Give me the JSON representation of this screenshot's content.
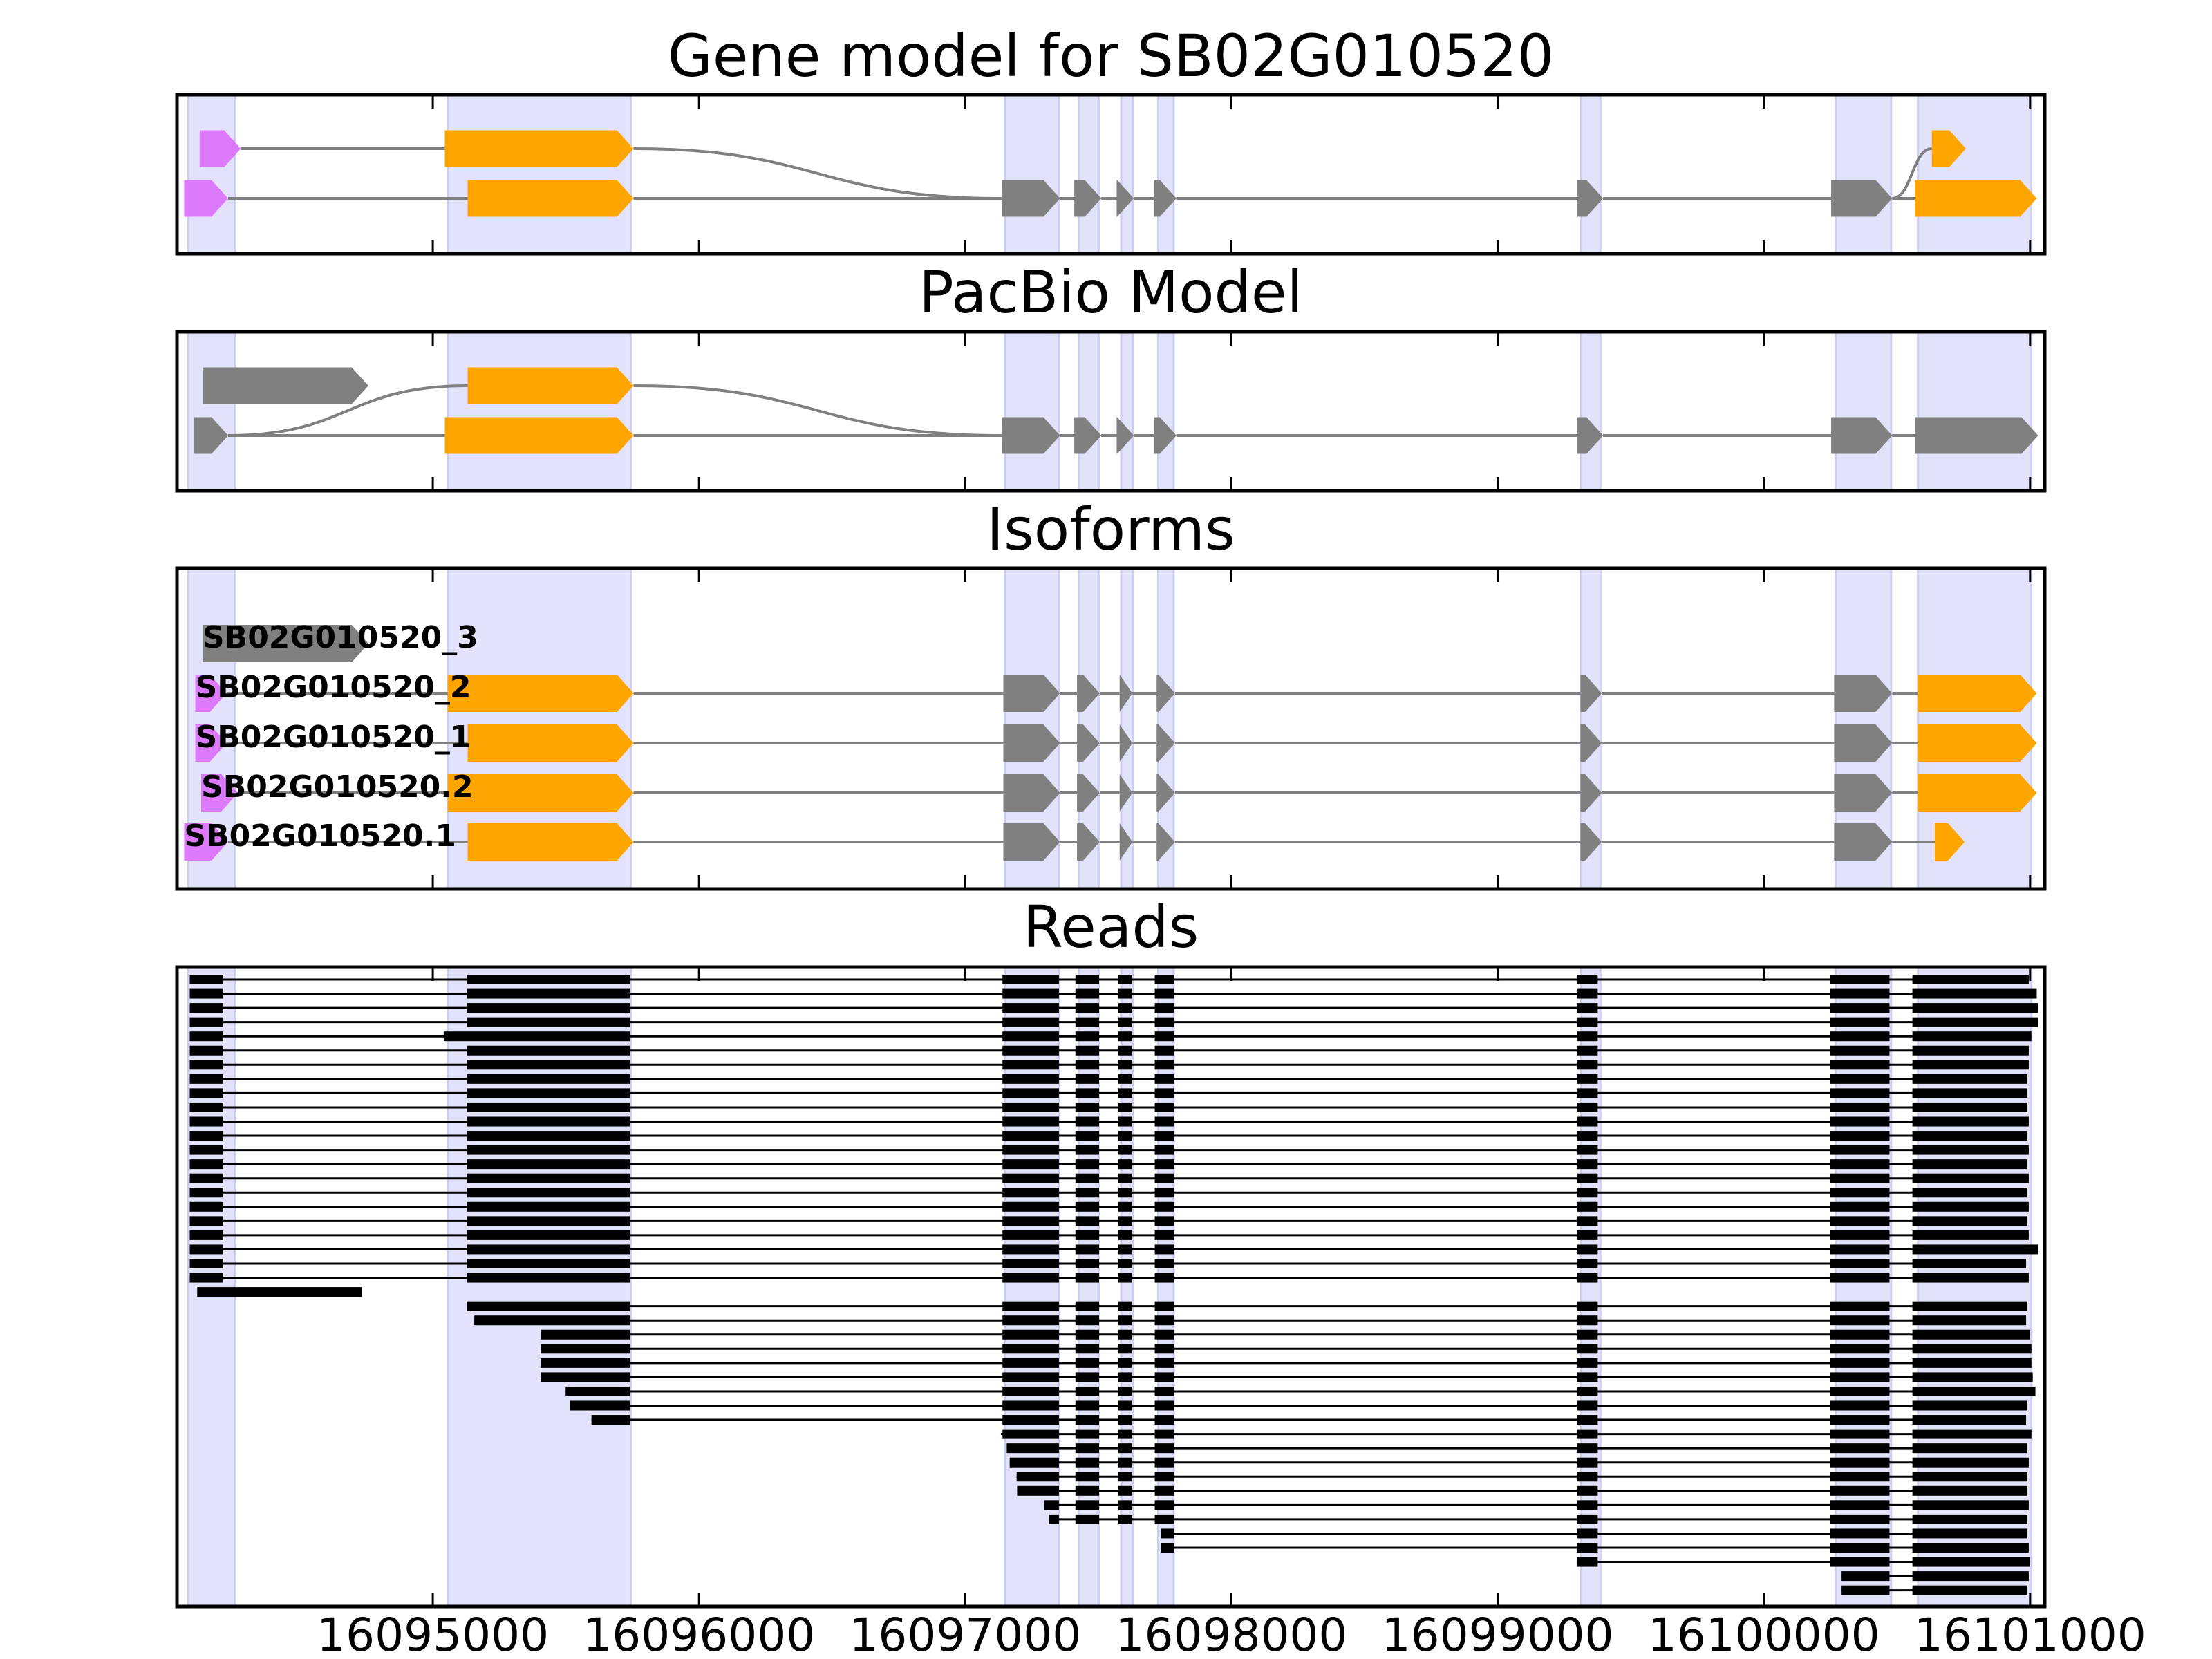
{
  "colors": {
    "pink": "#DD7AFC",
    "orange": "#FFA500",
    "gray": "#808080",
    "black": "#000000",
    "shade": "#E2E2FB",
    "shade_edge": "#CDCDF0"
  },
  "xaxis": {
    "xlim": [
      16094039,
      16101055
    ],
    "ticks": [
      16095000,
      16096000,
      16097000,
      16098000,
      16099000,
      16100000,
      16101000
    ],
    "tick_labels": [
      "16095000",
      "16096000",
      "16097000",
      "16098000",
      "16099000",
      "16100000",
      "16101000"
    ]
  },
  "shaded_regions": [
    [
      16094082,
      16094258
    ],
    [
      16095057,
      16095744
    ],
    [
      16097150,
      16097352
    ],
    [
      16097427,
      16097501
    ],
    [
      16097586,
      16097629
    ],
    [
      16097725,
      16097783
    ],
    [
      16099312,
      16099386
    ],
    [
      16100270,
      16100478
    ],
    [
      16100579,
      16101005
    ]
  ],
  "gene_model": {
    "title": "Gene model for SB02G010520",
    "transcripts": [
      {
        "exons": [
          [
            16094124,
            16094279,
            "pink",
            0
          ],
          [
            16095045,
            16095754,
            "orange",
            0
          ],
          [
            16097138,
            16097356,
            "gray",
            1
          ],
          [
            16097410,
            16097511,
            "gray",
            1
          ],
          [
            16097569,
            16097633,
            "gray",
            1
          ],
          [
            16097708,
            16097793,
            "gray",
            1
          ],
          [
            16099300,
            16099396,
            "gray",
            1
          ],
          [
            16100253,
            16100482,
            "gray",
            1
          ],
          [
            16100631,
            16100759,
            "orange",
            0
          ]
        ]
      },
      {
        "exons": [
          [
            16094066,
            16094231,
            "pink",
            1
          ],
          [
            16095131,
            16095754,
            "orange",
            1
          ],
          [
            16097138,
            16097356,
            "gray",
            1
          ],
          [
            16097410,
            16097511,
            "gray",
            1
          ],
          [
            16097569,
            16097633,
            "gray",
            1
          ],
          [
            16097708,
            16097793,
            "gray",
            1
          ],
          [
            16099300,
            16099396,
            "gray",
            1
          ],
          [
            16100253,
            16100482,
            "gray",
            1
          ],
          [
            16100567,
            16101025,
            "orange",
            1
          ]
        ]
      }
    ]
  },
  "pacbio_model": {
    "title": "PacBio Model",
    "transcripts": [
      {
        "exons": [
          [
            16094135,
            16094758,
            "gray",
            0
          ]
        ]
      },
      {
        "exons": [
          [
            16094103,
            16094231,
            "gray",
            1
          ],
          [
            16095131,
            16095754,
            "orange",
            0
          ],
          [
            16097138,
            16097356,
            "gray",
            1
          ],
          [
            16097410,
            16097511,
            "gray",
            1
          ],
          [
            16097569,
            16097633,
            "gray",
            1
          ],
          [
            16097708,
            16097793,
            "gray",
            1
          ],
          [
            16099300,
            16099396,
            "gray",
            1
          ],
          [
            16100253,
            16100482,
            "gray",
            1
          ],
          [
            16100567,
            16101030,
            "gray",
            1
          ]
        ]
      },
      {
        "exons": [
          [
            16094103,
            16094231,
            "gray",
            1
          ],
          [
            16095045,
            16095754,
            "orange",
            1
          ],
          [
            16097138,
            16097356,
            "gray",
            1
          ],
          [
            16097410,
            16097511,
            "gray",
            1
          ],
          [
            16097569,
            16097633,
            "gray",
            1
          ],
          [
            16097708,
            16097793,
            "gray",
            1
          ],
          [
            16099300,
            16099396,
            "gray",
            1
          ],
          [
            16100253,
            16100482,
            "gray",
            1
          ],
          [
            16100567,
            16101030,
            "gray",
            1
          ]
        ]
      }
    ]
  },
  "isoforms": {
    "title": "Isoforms",
    "transcripts": [
      {
        "label": "SB02G010520_3",
        "exons": [
          [
            16094135,
            16094758,
            "gray",
            0
          ]
        ]
      },
      {
        "label": "SB02G010520_2",
        "exons": [
          [
            16094108,
            16094225,
            "pink",
            1
          ],
          [
            16095056,
            16095754,
            "orange",
            1
          ],
          [
            16097143,
            16097356,
            "gray",
            1
          ],
          [
            16097420,
            16097505,
            "gray",
            1
          ],
          [
            16097580,
            16097628,
            "gray",
            1
          ],
          [
            16097719,
            16097788,
            "gray",
            1
          ],
          [
            16099311,
            16099391,
            "gray",
            1
          ],
          [
            16100264,
            16100482,
            "gray",
            1
          ],
          [
            16100578,
            16101025,
            "orange",
            1
          ]
        ]
      },
      {
        "label": "SB02G010520_1",
        "exons": [
          [
            16094108,
            16094225,
            "pink",
            2
          ],
          [
            16095131,
            16095754,
            "orange",
            2
          ],
          [
            16097143,
            16097356,
            "gray",
            2
          ],
          [
            16097420,
            16097505,
            "gray",
            2
          ],
          [
            16097580,
            16097628,
            "gray",
            2
          ],
          [
            16097719,
            16097788,
            "gray",
            2
          ],
          [
            16099311,
            16099391,
            "gray",
            2
          ],
          [
            16100264,
            16100482,
            "gray",
            2
          ],
          [
            16100578,
            16101025,
            "orange",
            2
          ]
        ]
      },
      {
        "label": "SB02G010520.2",
        "exons": [
          [
            16094130,
            16094268,
            "pink",
            3
          ],
          [
            16095056,
            16095754,
            "orange",
            3
          ],
          [
            16097143,
            16097356,
            "gray",
            3
          ],
          [
            16097420,
            16097505,
            "gray",
            3
          ],
          [
            16097580,
            16097628,
            "gray",
            3
          ],
          [
            16097719,
            16097788,
            "gray",
            3
          ],
          [
            16099311,
            16099391,
            "gray",
            3
          ],
          [
            16100264,
            16100482,
            "gray",
            3
          ],
          [
            16100578,
            16101025,
            "orange",
            3
          ]
        ]
      },
      {
        "label": "SB02G010520.1",
        "exons": [
          [
            16094066,
            16094231,
            "pink",
            4
          ],
          [
            16095131,
            16095754,
            "orange",
            4
          ],
          [
            16097143,
            16097356,
            "gray",
            4
          ],
          [
            16097420,
            16097505,
            "gray",
            4
          ],
          [
            16097580,
            16097628,
            "gray",
            4
          ],
          [
            16097719,
            16097788,
            "gray",
            4
          ],
          [
            16099311,
            16099391,
            "gray",
            4
          ],
          [
            16100264,
            16100482,
            "gray",
            4
          ],
          [
            16100642,
            16100754,
            "orange",
            4
          ]
        ]
      }
    ]
  },
  "reads": {
    "title": "Reads",
    "exons": [
      [
        16094087,
        16094213
      ],
      [
        16095128,
        16095740
      ],
      [
        16097140,
        16097352
      ],
      [
        16097414,
        16097503
      ],
      [
        16097575,
        16097627
      ],
      [
        16097712,
        16097784
      ],
      [
        16099297,
        16099376
      ],
      [
        16100250,
        16100472
      ],
      [
        16100558,
        null
      ]
    ],
    "items": [
      {
        "s": 16094087,
        "e": 16100995
      },
      {
        "s": 16094087,
        "e": 16101025
      },
      {
        "s": 16094087,
        "e": 16101030
      },
      {
        "s": 16094087,
        "e": 16101030
      },
      {
        "s": 16094087,
        "e": 16101005,
        "exon2_start": 16095041
      },
      {
        "s": 16094087,
        "e": 16100995
      },
      {
        "s": 16094087,
        "e": 16100995
      },
      {
        "s": 16094087,
        "e": 16100990
      },
      {
        "s": 16094087,
        "e": 16100990
      },
      {
        "s": 16094087,
        "e": 16100990
      },
      {
        "s": 16094087,
        "e": 16100995
      },
      {
        "s": 16094087,
        "e": 16100990
      },
      {
        "s": 16094087,
        "e": 16100995
      },
      {
        "s": 16094087,
        "e": 16100990
      },
      {
        "s": 16094087,
        "e": 16100995
      },
      {
        "s": 16094087,
        "e": 16100990
      },
      {
        "s": 16094087,
        "e": 16100995
      },
      {
        "s": 16094087,
        "e": 16100990
      },
      {
        "s": 16094087,
        "e": 16100995
      },
      {
        "s": 16094087,
        "e": 16101030
      },
      {
        "s": 16094087,
        "e": 16100985
      },
      {
        "s": 16094087,
        "e": 16100995
      },
      {
        "s": 16094115,
        "e": 16094733,
        "single": true
      },
      {
        "s": 16095128,
        "e": 16100990
      },
      {
        "s": 16095156,
        "e": 16100985
      },
      {
        "s": 16095406,
        "e": 16101000
      },
      {
        "s": 16095406,
        "e": 16101005
      },
      {
        "s": 16095406,
        "e": 16101005
      },
      {
        "s": 16095406,
        "e": 16101010
      },
      {
        "s": 16095499,
        "e": 16101020
      },
      {
        "s": 16095514,
        "e": 16100990
      },
      {
        "s": 16095596,
        "e": 16100985
      },
      {
        "s": 16097134,
        "e": 16101005
      },
      {
        "s": 16097156,
        "e": 16100990
      },
      {
        "s": 16097167,
        "e": 16100995
      },
      {
        "s": 16097193,
        "e": 16100990
      },
      {
        "s": 16097195,
        "e": 16100990
      },
      {
        "s": 16097297,
        "e": 16100995
      },
      {
        "s": 16097314,
        "e": 16100990
      },
      {
        "s": 16097734,
        "e": 16100990
      },
      {
        "s": 16097734,
        "e": 16100995
      },
      {
        "s": 16099297,
        "e": 16101000
      },
      {
        "s": 16100292,
        "e": 16100995
      },
      {
        "s": 16100292,
        "e": 16100990
      }
    ]
  }
}
